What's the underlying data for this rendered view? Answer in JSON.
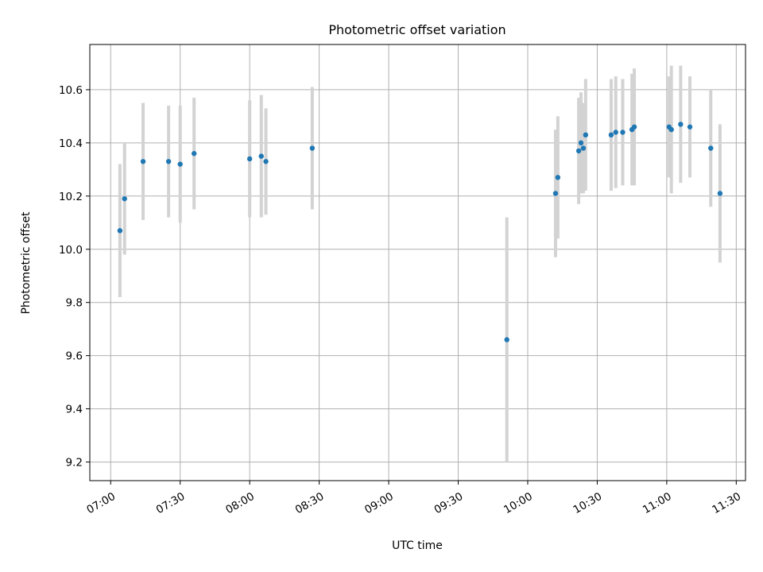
{
  "chart_data": {
    "type": "scatter",
    "title": "Photometric offset variation",
    "xlabel": "UTC time",
    "ylabel": "Photometric offset",
    "x_unit": "HH:MM",
    "xlim": [
      "06:51",
      "11:34"
    ],
    "ylim": [
      9.13,
      10.77
    ],
    "x_ticks": [
      "07:00",
      "07:30",
      "08:00",
      "08:30",
      "09:00",
      "09:30",
      "10:00",
      "10:30",
      "11:00",
      "11:30"
    ],
    "y_ticks": [
      "9.2",
      "9.4",
      "9.6",
      "9.8",
      "10.0",
      "10.2",
      "10.4",
      "10.6"
    ],
    "grid": true,
    "colors": {
      "point": "#1f77b4",
      "errorbar": "#d3d3d3",
      "grid": "#b0b0b0"
    },
    "points": [
      {
        "x": "07:04",
        "y": 10.07,
        "yerr": 0.25
      },
      {
        "x": "07:06",
        "y": 10.19,
        "yerr": 0.21
      },
      {
        "x": "07:14",
        "y": 10.33,
        "yerr": 0.22
      },
      {
        "x": "07:25",
        "y": 10.33,
        "yerr": 0.21
      },
      {
        "x": "07:30",
        "y": 10.32,
        "yerr": 0.22
      },
      {
        "x": "07:36",
        "y": 10.36,
        "yerr": 0.21
      },
      {
        "x": "08:00",
        "y": 10.34,
        "yerr": 0.22
      },
      {
        "x": "08:05",
        "y": 10.35,
        "yerr": 0.23
      },
      {
        "x": "08:07",
        "y": 10.33,
        "yerr": 0.2
      },
      {
        "x": "08:27",
        "y": 10.38,
        "yerr": 0.23
      },
      {
        "x": "09:51",
        "y": 9.66,
        "yerr": 0.46
      },
      {
        "x": "10:12",
        "y": 10.21,
        "yerr": 0.24
      },
      {
        "x": "10:13",
        "y": 10.27,
        "yerr": 0.23
      },
      {
        "x": "10:22",
        "y": 10.37,
        "yerr": 0.2
      },
      {
        "x": "10:23",
        "y": 10.4,
        "yerr": 0.19
      },
      {
        "x": "10:24",
        "y": 10.38,
        "yerr": 0.17
      },
      {
        "x": "10:25",
        "y": 10.43,
        "yerr": 0.21
      },
      {
        "x": "10:36",
        "y": 10.43,
        "yerr": 0.21
      },
      {
        "x": "10:38",
        "y": 10.44,
        "yerr": 0.21
      },
      {
        "x": "10:41",
        "y": 10.44,
        "yerr": 0.2
      },
      {
        "x": "10:45",
        "y": 10.45,
        "yerr": 0.21
      },
      {
        "x": "10:46",
        "y": 10.46,
        "yerr": 0.22
      },
      {
        "x": "11:01",
        "y": 10.46,
        "yerr": 0.19
      },
      {
        "x": "11:02",
        "y": 10.45,
        "yerr": 0.24
      },
      {
        "x": "11:06",
        "y": 10.47,
        "yerr": 0.22
      },
      {
        "x": "11:10",
        "y": 10.46,
        "yerr": 0.19
      },
      {
        "x": "11:19",
        "y": 10.38,
        "yerr": 0.22
      },
      {
        "x": "11:23",
        "y": 10.21,
        "yerr": 0.26
      }
    ]
  }
}
